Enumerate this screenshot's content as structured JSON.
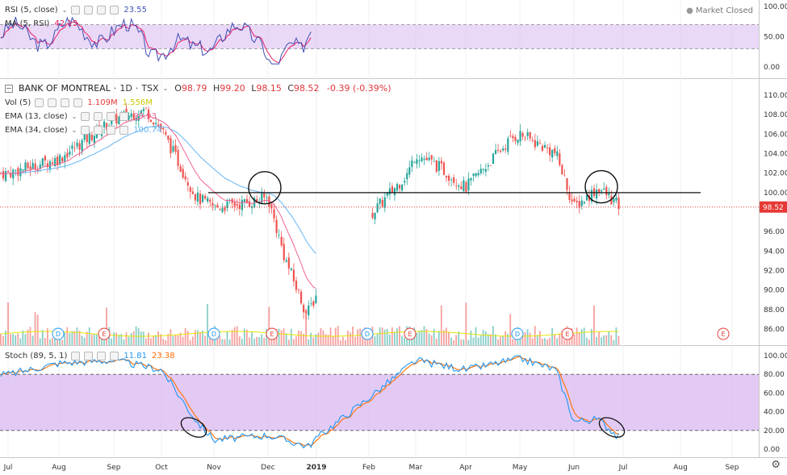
{
  "colors": {
    "candle_up": "#26a69a",
    "candle_down": "#ef5350",
    "rsi": "#3f51b5",
    "rsi_ma": "#e91e63",
    "ema13": "#f06292",
    "ema34": "#64b5f6",
    "vol_ma": "#e6e600",
    "stoch_k": "#2196f3",
    "stoch_d": "#ff6d00",
    "band_fill": "#d9b8f0",
    "price_line": "#e53935"
  },
  "rsi_panel": {
    "legend": {
      "name": "RSI (5, close)",
      "value": "23.55"
    },
    "ma_legend": {
      "name": "MA (5, RSI)",
      "value": "42.13"
    },
    "market_status": "Market Closed",
    "axis_ticks": [
      "100.00",
      "50.00",
      "0.00"
    ]
  },
  "price_panel": {
    "symbol": "BANK OF MONTREAL",
    "interval": "1D",
    "exchange": "TSX",
    "ohlc": {
      "o_label": "O",
      "o": "98.79",
      "h_label": "H",
      "h": "99.20",
      "l_label": "L",
      "l": "98.15",
      "c_label": "C",
      "c": "98.52",
      "change": "-0.39 (-0.39%)"
    },
    "vol_legend": {
      "name": "Vol (5)",
      "value": "1.109M",
      "ma_value": "1.556M"
    },
    "ema13_legend": {
      "name": "EMA (13, close)",
      "value": "99.93"
    },
    "ema34_legend": {
      "name": "EMA (34, close)",
      "value": "100.74"
    },
    "last_price": "98.52",
    "axis_ticks": [
      "110.00",
      "108.00",
      "106.00",
      "104.00",
      "102.00",
      "100.00",
      "96.00",
      "94.00",
      "92.00",
      "90.00",
      "88.00",
      "86.00"
    ],
    "event_marks": [
      "D",
      "E",
      "D",
      "E",
      "D",
      "E",
      "D",
      "E",
      "E"
    ]
  },
  "stoch_panel": {
    "legend": {
      "name": "Stoch (89, 5, 1)",
      "k_value": "11.81",
      "d_value": "23.38"
    },
    "axis_ticks": [
      "100.00",
      "80.00",
      "60.00",
      "40.00",
      "20.00",
      "0.00"
    ]
  },
  "time_axis": [
    "Jul",
    "Aug",
    "Sep",
    "Oct",
    "Nov",
    "Dec",
    "2019",
    "Feb",
    "Mar",
    "Apr",
    "May",
    "Jun",
    "Jul",
    "Aug",
    "Sep"
  ],
  "chart_data": {
    "type": "candlestick",
    "title": "BANK OF MONTREAL · 1D · TSX",
    "price_anchors": [
      [
        "Jul",
        102.0
      ],
      [
        "Aug",
        103.5
      ],
      [
        "Sep",
        107.5
      ],
      [
        "Sep-20",
        108.5
      ],
      [
        "Oct",
        106.5
      ],
      [
        "Oct-20",
        99.5
      ],
      [
        "Nov",
        98.5
      ],
      [
        "Nov-20",
        99.0
      ],
      [
        "Dec",
        99.5
      ],
      [
        "Dec-10",
        93.5
      ],
      [
        "Dec-24",
        87.5
      ],
      [
        "2019",
        89.5
      ],
      [
        "Jan-20",
        96.0
      ],
      [
        "Feb",
        97.5
      ],
      [
        "Feb-25",
        102.0
      ],
      [
        "Mar",
        104.0
      ],
      [
        "Mar-15",
        102.5
      ],
      [
        "Apr",
        100.5
      ],
      [
        "Apr-10",
        102.5
      ],
      [
        "Apr-25",
        105.5
      ],
      [
        "May",
        106.0
      ],
      [
        "May-20",
        104.0
      ],
      [
        "Jun",
        98.5
      ],
      [
        "Jun-15",
        100.5
      ],
      [
        "Jun-28",
        98.52
      ]
    ],
    "horizontal_level": 100.0,
    "ylim": [
      85,
      111
    ],
    "rsi_ylim": [
      0,
      100
    ],
    "rsi_bands": [
      30,
      70
    ],
    "stoch_ylim": [
      0,
      100
    ],
    "stoch_bands": [
      20,
      80
    ],
    "stoch_k_anchors": [
      [
        "Jul",
        80
      ],
      [
        "Aug",
        92
      ],
      [
        "Sep",
        95
      ],
      [
        "Oct",
        85
      ],
      [
        "Oct-20",
        30
      ],
      [
        "Nov",
        10
      ],
      [
        "Dec",
        15
      ],
      [
        "Dec-25",
        3
      ],
      [
        "2019",
        12
      ],
      [
        "Feb",
        55
      ],
      [
        "Mar",
        95
      ],
      [
        "Apr",
        85
      ],
      [
        "May",
        97
      ],
      [
        "May-20",
        85
      ],
      [
        "Jun",
        30
      ],
      [
        "Jun-15",
        32
      ],
      [
        "Jun-28",
        11.81
      ]
    ]
  }
}
